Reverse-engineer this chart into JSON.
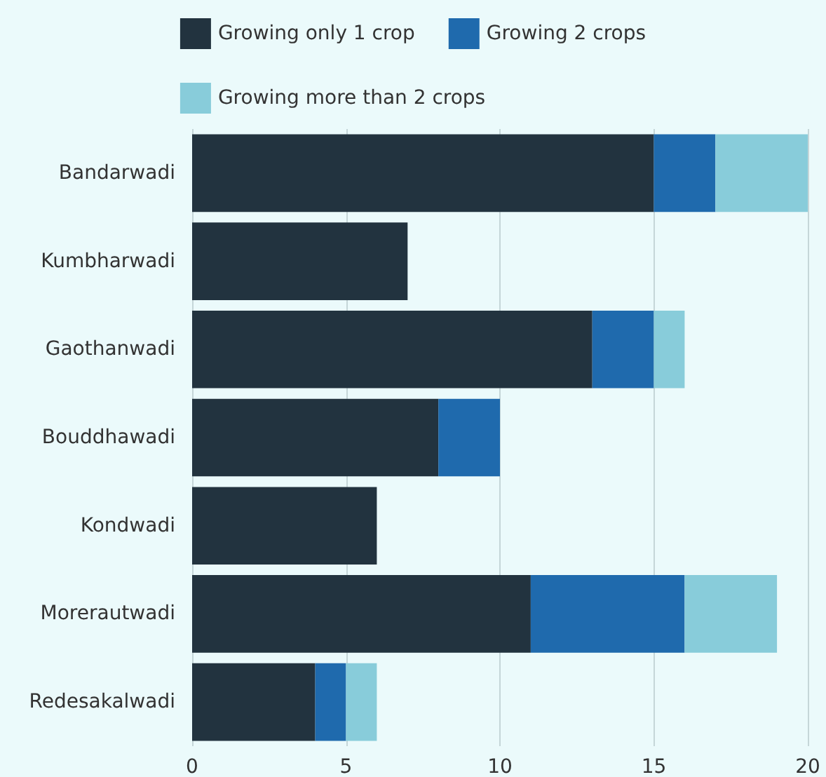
{
  "chart_data": {
    "type": "bar",
    "orientation": "horizontal",
    "stacked": true,
    "categories": [
      "Bandarwadi",
      "Kumbharwadi",
      "Gaothanwadi",
      "Bouddhawadi",
      "Kondwadi",
      "Morerautwadi",
      "Redesakalwadi"
    ],
    "series": [
      {
        "name": "Growing only 1 crop",
        "color": "#22333f",
        "values": [
          15,
          7,
          13,
          8,
          6,
          11,
          4
        ]
      },
      {
        "name": "Growing 2 crops",
        "color": "#1f6aad",
        "values": [
          2,
          0,
          2,
          2,
          0,
          5,
          1
        ]
      },
      {
        "name": "Growing more than 2 crops",
        "color": "#88ccda",
        "values": [
          3,
          0,
          1,
          0,
          0,
          3,
          1
        ]
      }
    ],
    "xlim": [
      0,
      20
    ],
    "xticks": [
      0,
      5,
      10,
      15,
      20
    ],
    "grid": "x",
    "legend": "top"
  }
}
